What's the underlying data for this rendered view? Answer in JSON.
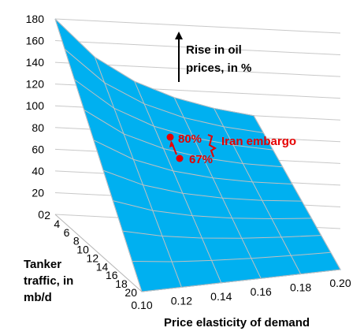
{
  "chart_data": {
    "type": "surface",
    "title": "",
    "zlim": [
      0,
      180
    ],
    "z_ticks": [
      "0",
      "20",
      "40",
      "60",
      "80",
      "100",
      "120",
      "140",
      "160",
      "180"
    ],
    "x_label": "Price elasticity of demand",
    "x_ticks": [
      "0.10",
      "0.12",
      "0.14",
      "0.16",
      "0.18",
      "0.20"
    ],
    "y_label": [
      "Tanker",
      "traffic, in",
      "mb/d"
    ],
    "y_ticks": [
      "2",
      "4",
      "6",
      "8",
      "10",
      "12",
      "14",
      "16",
      "18",
      "20"
    ],
    "z_annotation": [
      "Rise in oil",
      "prices, in %"
    ],
    "surface_color": "#00b0f0",
    "grid_color": "#c0c0c0",
    "highlight_color": "#e60000",
    "highlights": {
      "label": "Iran embargo",
      "points": [
        {
          "label": "80%",
          "value": 80
        },
        {
          "label": "67%",
          "value": 67
        }
      ]
    }
  }
}
